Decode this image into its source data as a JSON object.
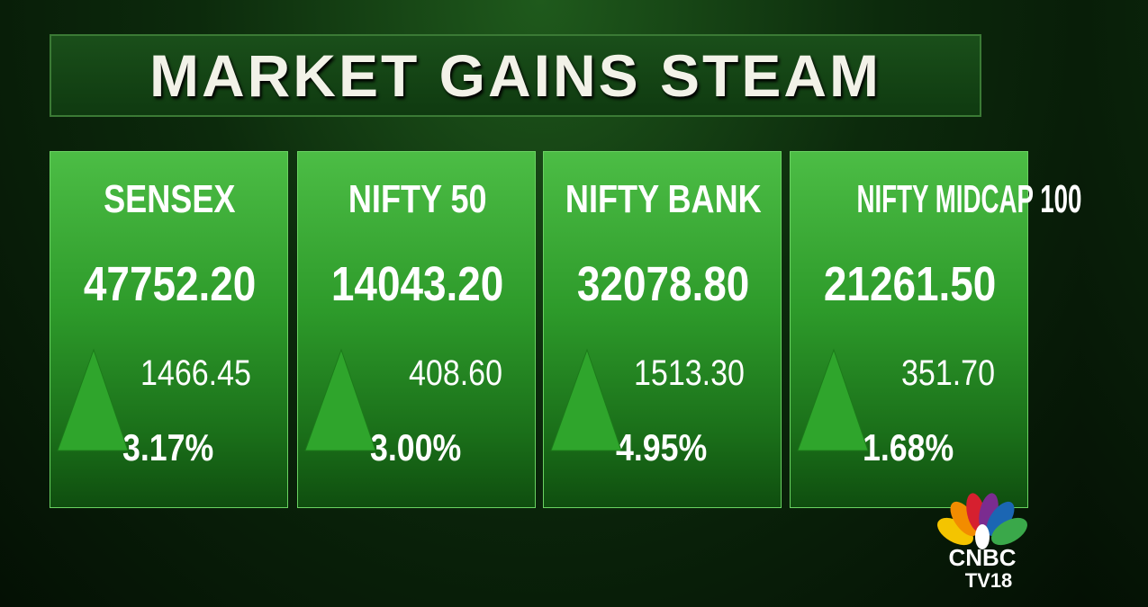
{
  "header": {
    "title": "MARKET GAINS STEAM"
  },
  "cards": [
    {
      "name": "SENSEX",
      "value": "47752.20",
      "change": "1466.45",
      "percent": "3.17%"
    },
    {
      "name": "NIFTY 50",
      "value": "14043.20",
      "change": "408.60",
      "percent": "3.00%"
    },
    {
      "name": "NIFTY BANK",
      "value": "32078.80",
      "change": "1513.30",
      "percent": "4.95%"
    },
    {
      "name": "NIFTY MIDCAP 100",
      "value": "21261.50",
      "change": "351.70",
      "percent": "1.68%"
    }
  ],
  "logo": {
    "brand": "CNBC",
    "channel": "TV18"
  }
}
